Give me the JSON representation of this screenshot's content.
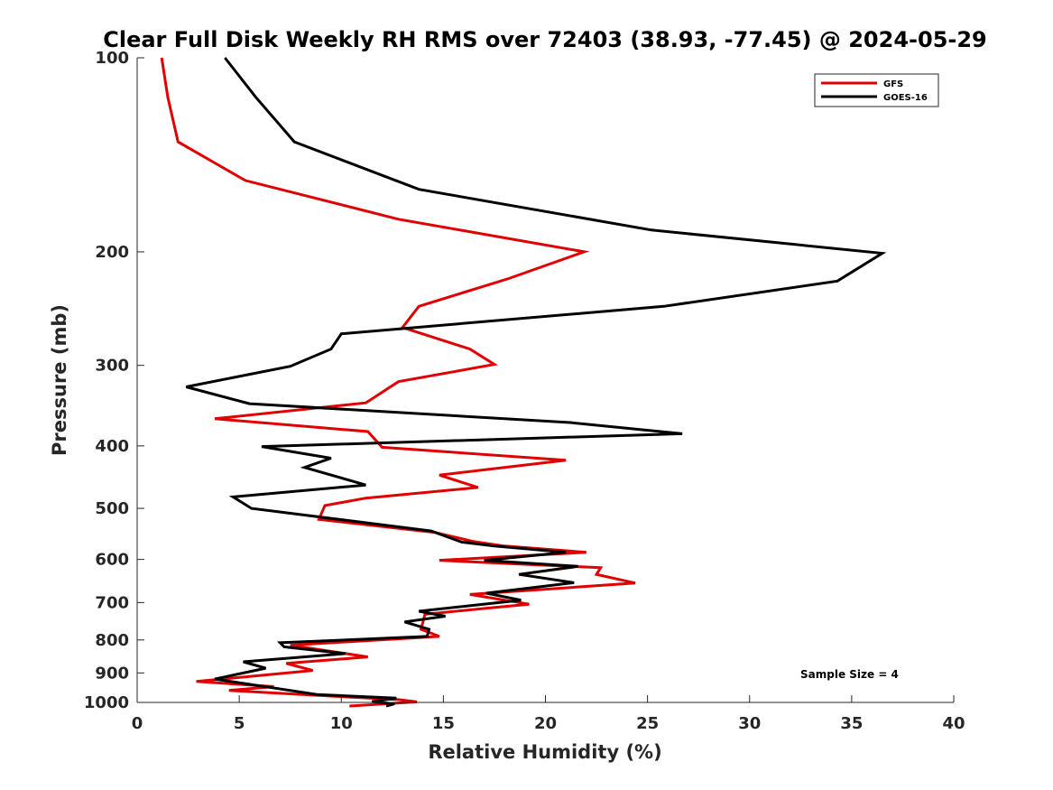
{
  "chart_data": {
    "type": "line",
    "title": "Clear Full Disk Weekly RH RMS over 72403 (38.93, -77.45) @ 2024-05-29",
    "xlabel": "Relative Humidity (%)",
    "ylabel": "Pressure (mb)",
    "xlim": [
      0,
      40
    ],
    "ylim": [
      100,
      1000
    ],
    "yscale": "log",
    "yreversed": true,
    "xticks": [
      0,
      5,
      10,
      15,
      20,
      25,
      30,
      35,
      40
    ],
    "yticks": [
      100,
      200,
      300,
      400,
      500,
      600,
      700,
      800,
      900,
      1000
    ],
    "grid": false,
    "legend_position": "top-right",
    "annotation": "Sample Size = 4",
    "series": [
      {
        "name": "GFS",
        "color": "#e00000",
        "points": [
          [
            1.2,
            100
          ],
          [
            1.5,
            115
          ],
          [
            2.0,
            135
          ],
          [
            5.3,
            155
          ],
          [
            12.8,
            178
          ],
          [
            21.9,
            200
          ],
          [
            18.2,
            220
          ],
          [
            13.8,
            243
          ],
          [
            13.0,
            262
          ],
          [
            16.3,
            283
          ],
          [
            17.5,
            299
          ],
          [
            12.8,
            318
          ],
          [
            11.2,
            343
          ],
          [
            3.8,
            363
          ],
          [
            11.3,
            380
          ],
          [
            12.0,
            402
          ],
          [
            21.0,
            421
          ],
          [
            14.8,
            444
          ],
          [
            16.7,
            464
          ],
          [
            11.2,
            482
          ],
          [
            9.2,
            495
          ],
          [
            8.9,
            520
          ],
          [
            14.6,
            545
          ],
          [
            16.5,
            563
          ],
          [
            18.0,
            572
          ],
          [
            22.0,
            585
          ],
          [
            14.8,
            602
          ],
          [
            22.7,
            618
          ],
          [
            22.5,
            633
          ],
          [
            24.4,
            653
          ],
          [
            16.3,
            680
          ],
          [
            19.2,
            704
          ],
          [
            17.2,
            714
          ],
          [
            14.1,
            730
          ],
          [
            14.0,
            750
          ],
          [
            13.9,
            770
          ],
          [
            14.8,
            790
          ],
          [
            7.5,
            815
          ],
          [
            11.3,
            850
          ],
          [
            7.3,
            870
          ],
          [
            8.6,
            892
          ],
          [
            2.9,
            928
          ],
          [
            6.7,
            945
          ],
          [
            4.5,
            958
          ],
          [
            9.6,
            978
          ],
          [
            12.8,
            990
          ],
          [
            13.7,
            998
          ],
          [
            10.4,
            1013
          ]
        ]
      },
      {
        "name": "GOES-16",
        "color": "#000000",
        "points": [
          [
            4.3,
            100
          ],
          [
            5.8,
            115
          ],
          [
            7.7,
            135
          ],
          [
            13.8,
            160
          ],
          [
            25.2,
            185
          ],
          [
            36.5,
            201
          ],
          [
            34.3,
            222
          ],
          [
            25.8,
            243
          ],
          [
            10.0,
            268
          ],
          [
            9.5,
            283
          ],
          [
            7.5,
            301
          ],
          [
            2.4,
            324
          ],
          [
            5.5,
            344
          ],
          [
            21.2,
            368
          ],
          [
            26.7,
            383
          ],
          [
            6.1,
            401
          ],
          [
            9.5,
            418
          ],
          [
            8.2,
            432
          ],
          [
            11.2,
            460
          ],
          [
            4.7,
            480
          ],
          [
            5.6,
            500
          ],
          [
            14.4,
            542
          ],
          [
            15.9,
            564
          ],
          [
            17.5,
            572
          ],
          [
            21.0,
            585
          ],
          [
            17.0,
            602
          ],
          [
            21.6,
            615
          ],
          [
            18.7,
            633
          ],
          [
            21.4,
            652
          ],
          [
            17.1,
            677
          ],
          [
            18.8,
            694
          ],
          [
            13.8,
            722
          ],
          [
            15.1,
            735
          ],
          [
            13.1,
            750
          ],
          [
            14.3,
            770
          ],
          [
            14.2,
            790
          ],
          [
            7.0,
            808
          ],
          [
            7.2,
            820
          ],
          [
            10.2,
            840
          ],
          [
            5.2,
            865
          ],
          [
            6.3,
            885
          ],
          [
            3.8,
            920
          ],
          [
            6.9,
            952
          ],
          [
            8.8,
            972
          ],
          [
            12.7,
            985
          ],
          [
            11.5,
            997
          ],
          [
            12.6,
            1005
          ],
          [
            12.2,
            1013
          ]
        ]
      }
    ]
  }
}
